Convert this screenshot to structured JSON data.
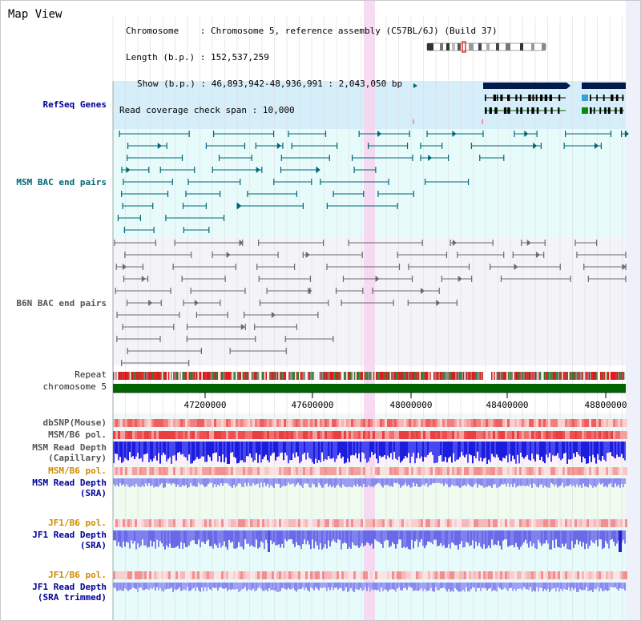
{
  "page": {
    "title": "Map View"
  },
  "info": {
    "chromosome_label": "Chromosome",
    "chromosome_value": "Chromosome 5, reference assembly (C57BL/6J) (Build 37)",
    "length_label": "Length (b.p.)",
    "length_value": "152,537,259",
    "show_label": "Show (b.p.)",
    "show_value": "46,893,942-48,936,991 : 2,043,050 bp",
    "coverage_label": "Read coverage check span",
    "coverage_value": "10,000"
  },
  "region": {
    "start": 46893942,
    "end": 48936991,
    "highlight_start": 47900000,
    "highlight_end": 47940000
  },
  "tracks": {
    "refseq": "RefSeq Genes",
    "msm_bac": "MSM BAC end pairs",
    "b6n_bac": "B6N BAC end pairs",
    "repeat": "Repeat",
    "chromosome": "chromosome 5",
    "dbsnp": "dbSNP(Mouse)",
    "msm_pol1": "MSM/B6 pol.",
    "msm_depth_cap_1": "MSM Read Depth",
    "msm_depth_cap_2": "(Capillary)",
    "msm_pol2": "MSM/B6 pol.",
    "msm_depth_sra_1": "MSM Read Depth",
    "msm_depth_sra_2": "(SRA)",
    "jf1_pol1": "JF1/B6 pol.",
    "jf1_depth_1": "JF1 Read Depth",
    "jf1_depth_2": "(SRA)",
    "jf1_pol2": "JF1/B6 pol.",
    "jf1_trim_1": "JF1 Read Depth",
    "jf1_trim_2": "(SRA trimmed)"
  },
  "axis": {
    "ticks": [
      "47200000",
      "47600000",
      "48000000",
      "48400000",
      "48800000"
    ]
  },
  "colors": {
    "refseq_bg": "#d6eef9",
    "msm_bg": "#e8fbfb",
    "b6n_bg": "#f4f4f8",
    "teal": "#006677",
    "grey": "#6a6a6a",
    "navy": "#001a4d",
    "green": "#006400",
    "highlight": "#f7d3f0",
    "depth_blue": "#1a1ae6",
    "depth_light": "#8080ee"
  }
}
